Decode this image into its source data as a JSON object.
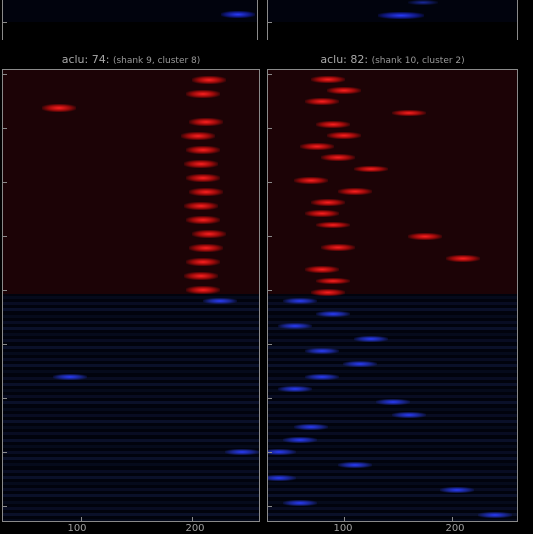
{
  "panels": [
    {
      "id": "left",
      "title_main": "aclu: 74:",
      "title_sub": "(shank 9, cluster 8)",
      "x_ticks": [
        "100",
        "200"
      ]
    },
    {
      "id": "right",
      "title_main": "aclu: 82:",
      "title_sub": "(shank 10, cluster 2)",
      "x_ticks": [
        "100",
        "200"
      ]
    }
  ],
  "colors": {
    "red_bg": "#1c0306",
    "blue_bg": "#01030d",
    "red_peak": "#ff2020",
    "blue_peak": "#2a3cff"
  },
  "chart_data": [
    {
      "type": "heatmap",
      "title": "aclu: 74: (shank 9, cluster 8)",
      "x_ticks": [
        100,
        200
      ],
      "xlim": [
        30,
        260
      ],
      "red_rows_peak_x": [
        215,
        210,
        80,
        212,
        205,
        210,
        208,
        210,
        212,
        208,
        210,
        215,
        212,
        210,
        208,
        210
      ],
      "blue_rows_peak_x": [
        225,
        90,
        245
      ]
    },
    {
      "type": "heatmap",
      "title": "aclu: 82: (shank 10, cluster 2)",
      "x_ticks": [
        100,
        200
      ],
      "xlim": [
        30,
        260
      ],
      "red_rows_peak_x": [
        85,
        100,
        80,
        160,
        90,
        100,
        75,
        95,
        125,
        70,
        110,
        85,
        80,
        90,
        175,
        95,
        210,
        80,
        90,
        85
      ],
      "blue_rows_peak_x": [
        60,
        90,
        55,
        125,
        80,
        115,
        80,
        55,
        145,
        160,
        70,
        60,
        40,
        110,
        40,
        205,
        60,
        240
      ]
    }
  ]
}
